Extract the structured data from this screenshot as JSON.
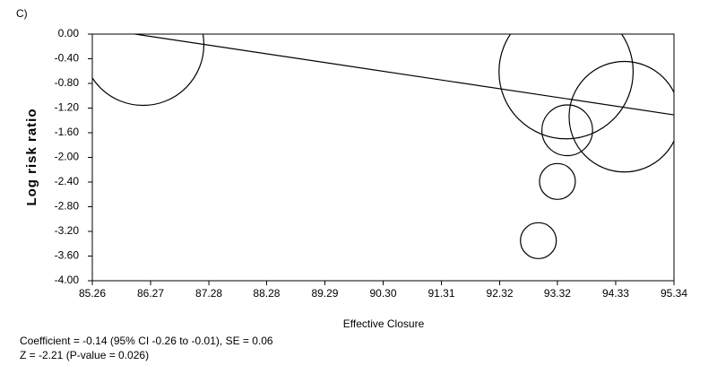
{
  "chart_data": {
    "type": "bubble",
    "panel_label": "C)",
    "xlabel": "Effective Closure",
    "ylabel": "Log risk ratio",
    "notes": [
      "Coefficient = -0.14 (95% CI -0.26 to -0.01), SE = 0.06",
      "Z = -2.21 (P-value = 0.026)"
    ],
    "x": [
      86.14,
      93.47,
      94.48,
      93.49,
      93.32,
      92.99
    ],
    "values": [
      -0.17,
      -0.61,
      -1.34,
      -1.56,
      -2.39,
      -3.35
    ],
    "sizes": [
      46,
      56,
      38,
      8,
      4,
      4
    ],
    "fit": {
      "x": [
        86.0,
        95.34
      ],
      "values": [
        0,
        -1.31
      ]
    },
    "color": "#000000",
    "xlim": [
      85.26,
      95.34
    ],
    "xticks": [
      85.26,
      86.27,
      87.28,
      88.28,
      89.29,
      {
        "value": 90.3,
        "label": "90.30"
      },
      91.31,
      92.32,
      93.32,
      94.33,
      95.34
    ],
    "ylim": [
      -4,
      0
    ],
    "yticks": [
      {
        "value": 0,
        "label": "0.00"
      },
      {
        "value": -0.4,
        "label": "-0.40"
      },
      {
        "value": -0.8,
        "label": "-0.80"
      },
      {
        "value": -1.2,
        "label": "-1.20"
      },
      {
        "value": -1.6,
        "label": "-1.60"
      },
      {
        "value": -2,
        "label": "-2.00"
      },
      {
        "value": -2.4,
        "label": "-2.40"
      },
      {
        "value": -2.8,
        "label": "-2.80"
      },
      {
        "value": -3.2,
        "label": "-3.20"
      },
      {
        "value": -3.6,
        "label": "-3.60"
      },
      {
        "value": -4,
        "label": "-4.00"
      }
    ]
  }
}
